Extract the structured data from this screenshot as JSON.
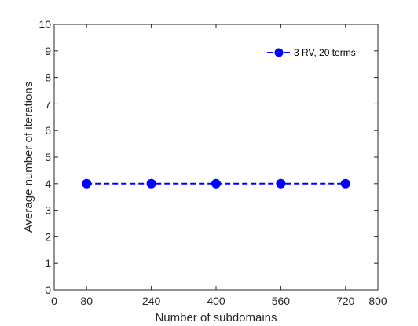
{
  "chart_data": {
    "type": "line",
    "xlabel": "Number of subdomains",
    "ylabel": "Average number of iterations",
    "xlim": [
      0,
      800
    ],
    "ylim": [
      0,
      10
    ],
    "xticks": [
      0,
      80,
      240,
      400,
      560,
      720,
      800
    ],
    "yticks": [
      0,
      1,
      2,
      3,
      4,
      5,
      6,
      7,
      8,
      9,
      10
    ],
    "grid": false,
    "legend_position": "top-right",
    "series": [
      {
        "name": "3 RV, 20 terms",
        "color": "#0000ff",
        "line_style": "dashed",
        "marker": "circle",
        "x": [
          80,
          240,
          400,
          560,
          720
        ],
        "y": [
          4,
          4,
          4,
          4,
          4
        ]
      }
    ]
  }
}
